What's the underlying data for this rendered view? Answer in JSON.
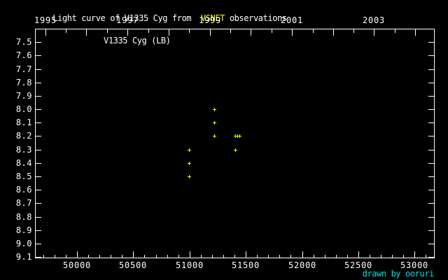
{
  "title": {
    "prefix": "Light curve of V1335 Cyg from  ",
    "highlight": "VSNET",
    "suffix": " observations"
  },
  "plot_label": "V1335 Cyg (LB)",
  "watermark": "drawn by ooruri",
  "colors": {
    "background": "#000000",
    "foreground": "#ffffff",
    "accent_title": "#ffff00",
    "marker": "#ffff00",
    "watermark": "#00e0e0"
  },
  "chart_data": {
    "type": "scatter",
    "title": "Light curve of V1335 Cyg from VSNET observations",
    "series_label": "V1335 Cyg (LB)",
    "marker": "plus",
    "marker_color": "#ffff00",
    "grid": false,
    "x_axis_bottom": {
      "range": [
        49627,
        53178
      ],
      "major_ticks": [
        50000,
        50500,
        51000,
        51500,
        52000,
        52500,
        53000
      ],
      "major_tick_labels": [
        "50000",
        "50500",
        "51000",
        "51500",
        "52000",
        "52500",
        "53000"
      ],
      "minor_tick_step": 100
    },
    "x_axis_top": {
      "ticks": [
        {
          "jd": 49718,
          "major": true
        },
        {
          "jd": 49901,
          "major": false
        },
        {
          "jd": 50083,
          "major": true
        },
        {
          "jd": 50266,
          "major": false
        },
        {
          "jd": 50449,
          "major": true
        },
        {
          "jd": 50632,
          "major": false
        },
        {
          "jd": 50814,
          "major": true
        },
        {
          "jd": 50997,
          "major": false
        },
        {
          "jd": 51179,
          "major": true
        },
        {
          "jd": 51362,
          "major": false
        },
        {
          "jd": 51544,
          "major": true
        },
        {
          "jd": 51727,
          "major": false
        },
        {
          "jd": 51910,
          "major": true
        },
        {
          "jd": 52093,
          "major": false
        },
        {
          "jd": 52275,
          "major": true
        },
        {
          "jd": 52458,
          "major": false
        },
        {
          "jd": 52640,
          "major": true
        },
        {
          "jd": 52823,
          "major": false
        },
        {
          "jd": 53005,
          "major": true
        }
      ],
      "labels": [
        {
          "text": "1995",
          "jd": 49718
        },
        {
          "text": "1997",
          "jd": 50449
        },
        {
          "text": "1999",
          "jd": 51179
        },
        {
          "text": "2001",
          "jd": 51910
        },
        {
          "text": "2003",
          "jd": 52640
        }
      ]
    },
    "y_axis": {
      "range": [
        7.4,
        9.11
      ],
      "direction": "down",
      "tick_step": 0.1,
      "tick_values": [
        7.5,
        7.6,
        7.7,
        7.8,
        7.9,
        8.0,
        8.1,
        8.2,
        8.3,
        8.4,
        8.5,
        8.6,
        8.7,
        8.8,
        8.9,
        9.0,
        9.1
      ],
      "tick_labels": [
        "7.5",
        "7.6",
        "7.7",
        "7.8",
        "7.9",
        "8.0",
        "8.1",
        "8.2",
        "8.3",
        "8.4",
        "8.5",
        "8.6",
        "8.7",
        "8.8",
        "8.9",
        "9.0",
        "9.1"
      ]
    },
    "points": [
      {
        "jd": 50993,
        "mag": 8.3
      },
      {
        "jd": 50993,
        "mag": 8.4
      },
      {
        "jd": 50993,
        "mag": 8.5
      },
      {
        "jd": 51219,
        "mag": 8.0
      },
      {
        "jd": 51219,
        "mag": 8.1
      },
      {
        "jd": 51219,
        "mag": 8.2
      },
      {
        "jd": 51404,
        "mag": 8.2
      },
      {
        "jd": 51422,
        "mag": 8.2
      },
      {
        "jd": 51443,
        "mag": 8.2
      },
      {
        "jd": 51404,
        "mag": 8.3
      }
    ]
  }
}
